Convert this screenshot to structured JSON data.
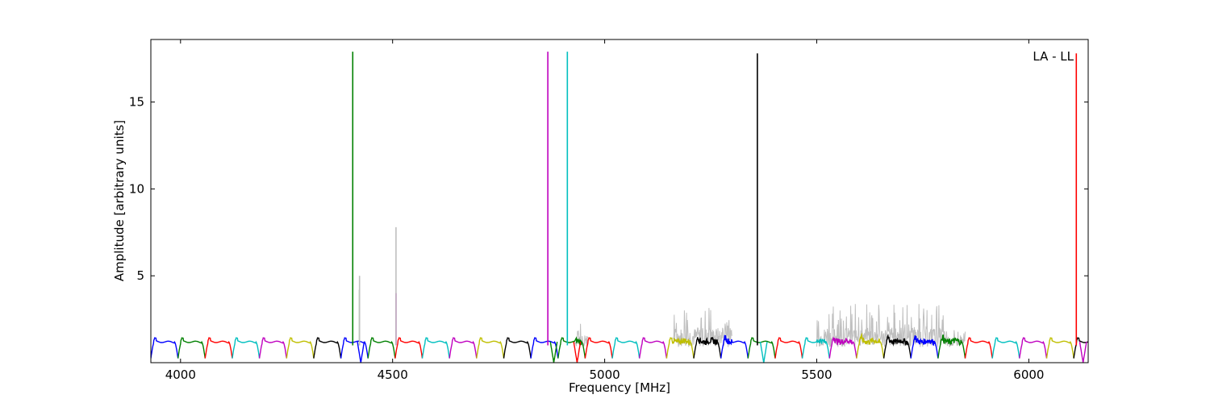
{
  "chart_data": {
    "type": "line",
    "title": "",
    "xlabel": "Frequency [MHz]",
    "ylabel": "Amplitude [arbitrary units]",
    "xlim": [
      3930,
      6140
    ],
    "ylim": [
      0,
      18.6
    ],
    "xticks": [
      4000,
      4500,
      5000,
      5500,
      6000
    ],
    "yticks": [
      5,
      10,
      15
    ],
    "grid": false,
    "legend": "none",
    "annotation": "LA - LL",
    "subband": {
      "start": 3930,
      "width": 64,
      "base": 0.25,
      "level": 1.2,
      "colors": [
        "#0000ff",
        "#008000",
        "#ff0000",
        "#00bfbf",
        "#bf00bf",
        "#bfbf00",
        "#000000"
      ]
    },
    "background_color": "#bfbfbf",
    "spikes": [
      {
        "x": 4406,
        "y": 17.9,
        "color": "#008000"
      },
      {
        "x": 4422,
        "y": 4.2,
        "color": "#008000"
      },
      {
        "x": 4422,
        "y": 5.0,
        "color": "#bfbfbf"
      },
      {
        "x": 4508,
        "y": 4.0,
        "color": "#bf00bf"
      },
      {
        "x": 4508,
        "y": 7.8,
        "color": "#bfbfbf"
      },
      {
        "x": 4866,
        "y": 17.9,
        "color": "#bf00bf"
      },
      {
        "x": 4912,
        "y": 17.9,
        "color": "#00bfbf"
      },
      {
        "x": 5360,
        "y": 17.8,
        "color": "#000000"
      },
      {
        "x": 6112,
        "y": 17.8,
        "color": "#ff0000"
      }
    ],
    "noise_regions": [
      {
        "from": 4930,
        "to": 4960,
        "max": 2.3
      },
      {
        "from": 5160,
        "to": 5300,
        "max": 3.4
      },
      {
        "from": 5500,
        "to": 5800,
        "max": 3.4
      },
      {
        "from": 5800,
        "to": 5850,
        "max": 1.9
      }
    ],
    "dips": [
      {
        "x": 4425,
        "y": 0.0
      },
      {
        "x": 4880,
        "y": 0.0
      },
      {
        "x": 4935,
        "y": 0.0
      },
      {
        "x": 5375,
        "y": 0.0
      },
      {
        "x": 6128,
        "y": 0.0
      }
    ]
  }
}
